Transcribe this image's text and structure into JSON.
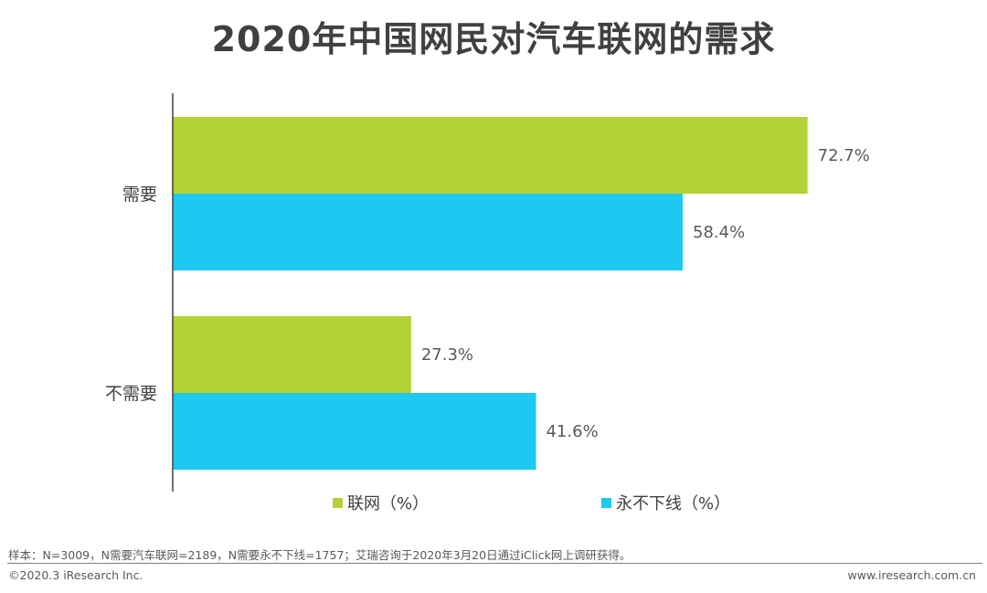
{
  "chart_data": {
    "type": "bar",
    "orientation": "horizontal",
    "title": "2020年中国网民对汽车联网的需求",
    "categories": [
      "需要",
      "不需要"
    ],
    "series": [
      {
        "name": "联网（%）",
        "values": [
          72.7,
          27.3
        ],
        "color": "#b2d235"
      },
      {
        "name": "永不下线（%）",
        "values": [
          58.4,
          41.6
        ],
        "color": "#1ec8f0"
      }
    ],
    "value_labels": [
      [
        "72.7%",
        "27.3%"
      ],
      [
        "58.4%",
        "41.6%"
      ]
    ],
    "xlim": [
      0,
      100
    ],
    "legend_position": "bottom",
    "grid": false
  },
  "footer": {
    "note": "样本：N=3009，N需要汽车联网=2189，N需要永不下线=1757；艾瑞咨询于2020年3月20日通过iClick网上调研获得。",
    "copyright": "©2020.3 iResearch Inc.",
    "website": "www.iresearch.com.cn"
  }
}
